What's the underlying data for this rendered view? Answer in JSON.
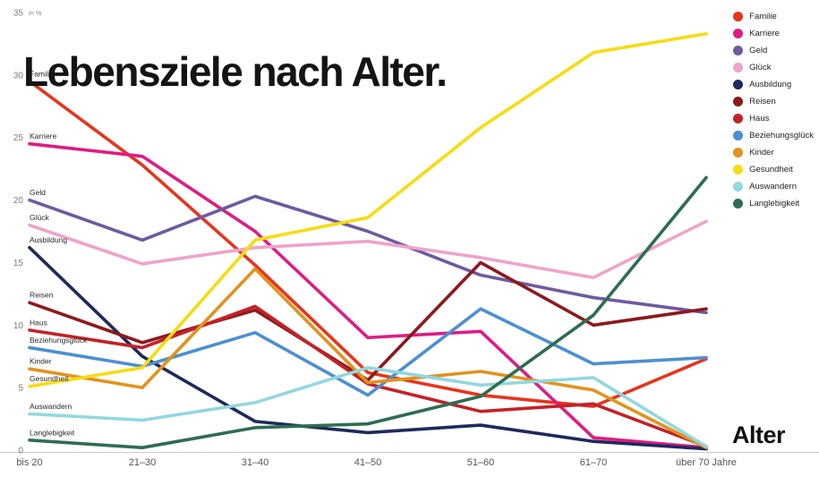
{
  "title": "Lebensziele nach Alter.",
  "x_axis_label": "Alter",
  "chart_data": {
    "type": "line",
    "title": "Lebensziele nach Alter.",
    "xlabel": "Alter",
    "ylabel": "in %",
    "ylim": [
      0,
      35
    ],
    "yticks": [
      0,
      5,
      10,
      15,
      20,
      25,
      30,
      35
    ],
    "grid": false,
    "legend_position": "top-right",
    "categories": [
      "bis 20",
      "21–30",
      "31–40",
      "41–50",
      "51–60",
      "61–70",
      "über 70 Jahre"
    ],
    "series": [
      {
        "name": "Familie",
        "color": "#e8341c",
        "values": [
          29.5,
          22.8,
          14.8,
          6.2,
          4.4,
          3.5,
          7.3
        ]
      },
      {
        "name": "Karriere",
        "color": "#df1b83",
        "values": [
          24.5,
          23.5,
          17.5,
          9.0,
          9.5,
          1.0,
          0.2
        ]
      },
      {
        "name": "Geld",
        "color": "#6f5aa0",
        "values": [
          20.0,
          16.8,
          20.3,
          17.5,
          14.0,
          12.2,
          11.0
        ]
      },
      {
        "name": "Glück",
        "color": "#efa3ca",
        "values": [
          18.0,
          14.9,
          16.2,
          16.7,
          15.4,
          13.8,
          18.3
        ]
      },
      {
        "name": "Ausbildung",
        "color": "#1e2a5c",
        "values": [
          16.2,
          7.5,
          2.3,
          1.4,
          2.0,
          0.7,
          0.1
        ]
      },
      {
        "name": "Reisen",
        "color": "#8c1a1c",
        "values": [
          11.8,
          8.6,
          11.2,
          5.6,
          15.0,
          10.0,
          11.3
        ]
      },
      {
        "name": "Haus",
        "color": "#c42127",
        "values": [
          9.6,
          8.2,
          11.5,
          5.3,
          3.1,
          3.7,
          0.3
        ]
      },
      {
        "name": "Beziehungsglück",
        "color": "#4d8fd1",
        "values": [
          8.2,
          6.7,
          9.4,
          4.4,
          11.3,
          6.9,
          7.4
        ]
      },
      {
        "name": "Kinder",
        "color": "#e2921e",
        "values": [
          6.5,
          5.0,
          14.5,
          5.4,
          6.3,
          4.8,
          0.2
        ]
      },
      {
        "name": "Gesundheit",
        "color": "#f6dc12",
        "values": [
          5.1,
          6.6,
          16.8,
          18.6,
          25.8,
          31.8,
          33.3
        ]
      },
      {
        "name": "Auswandern",
        "color": "#92d8de",
        "values": [
          2.9,
          2.4,
          3.8,
          6.6,
          5.2,
          5.8,
          0.3
        ]
      },
      {
        "name": "Langlebigkeit",
        "color": "#2e6d51",
        "values": [
          0.8,
          0.2,
          1.8,
          2.1,
          4.3,
          10.8,
          21.8
        ]
      }
    ]
  }
}
